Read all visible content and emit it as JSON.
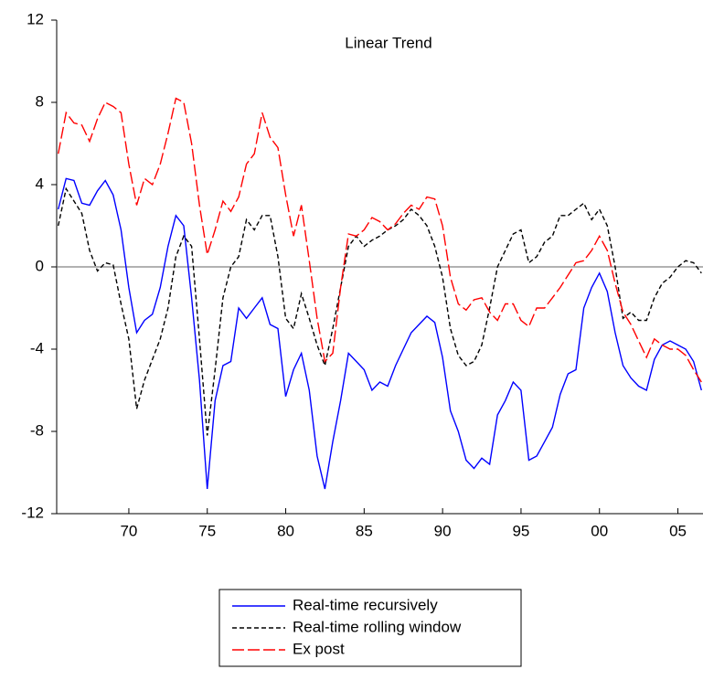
{
  "chart_data": {
    "type": "line",
    "annotation": "Linear Trend",
    "x": [
      1965.5,
      1966,
      1966.5,
      1967,
      1967.5,
      1968,
      1968.5,
      1969,
      1969.5,
      1970,
      1970.5,
      1971,
      1971.5,
      1972,
      1972.5,
      1973,
      1973.5,
      1974,
      1974.5,
      1975,
      1975.5,
      1976,
      1976.5,
      1977,
      1977.5,
      1978,
      1978.5,
      1979,
      1979.5,
      1980,
      1980.5,
      1981,
      1981.5,
      1982,
      1982.5,
      1983,
      1983.5,
      1984,
      1984.5,
      1985,
      1985.5,
      1986,
      1986.5,
      1987,
      1987.5,
      1988,
      1988.5,
      1989,
      1989.5,
      1990,
      1990.5,
      1991,
      1991.5,
      1992,
      1992.5,
      1993,
      1993.5,
      1994,
      1994.5,
      1995,
      1995.5,
      1996,
      1996.5,
      1997,
      1997.5,
      1998,
      1998.5,
      1999,
      1999.5,
      2000,
      2000.5,
      2001,
      2001.5,
      2002,
      2002.5,
      2003,
      2003.5,
      2004,
      2004.5,
      2005,
      2005.5,
      2006,
      2006.5
    ],
    "series": [
      {
        "name": "Real-time recursively",
        "color": "#0000ff",
        "dash": "solid",
        "values": [
          2.8,
          4.3,
          4.2,
          3.1,
          3.0,
          3.7,
          4.2,
          3.5,
          1.8,
          -1.0,
          -3.2,
          -2.6,
          -2.3,
          -1.0,
          1.0,
          2.5,
          2.0,
          -1.5,
          -5.5,
          -10.8,
          -6.5,
          -4.8,
          -4.6,
          -2.0,
          -2.5,
          -2.0,
          -1.5,
          -2.8,
          -3.0,
          -6.3,
          -5.0,
          -4.2,
          -6.0,
          -9.2,
          -10.8,
          -8.5,
          -6.5,
          -4.2,
          -4.6,
          -5.0,
          -6.0,
          -5.6,
          -5.8,
          -4.8,
          -4.0,
          -3.2,
          -2.8,
          -2.4,
          -2.7,
          -4.4,
          -7.0,
          -8.0,
          -9.4,
          -9.8,
          -9.3,
          -9.6,
          -7.2,
          -6.5,
          -5.6,
          -6.0,
          -9.4,
          -9.2,
          -8.5,
          -7.8,
          -6.2,
          -5.2,
          -5.0,
          -2.0,
          -1.0,
          -0.3,
          -1.2,
          -3.2,
          -4.8,
          -5.4,
          -5.8,
          -6.0,
          -4.5,
          -3.8,
          -3.6,
          -3.8,
          -4.0,
          -4.6,
          -6.0
        ]
      },
      {
        "name": "Real-time rolling window",
        "color": "#000000",
        "dash": "short-dash",
        "values": [
          2.0,
          3.8,
          3.2,
          2.6,
          0.8,
          -0.2,
          0.2,
          0.1,
          -1.8,
          -3.5,
          -6.9,
          -5.5,
          -4.5,
          -3.5,
          -2.0,
          0.5,
          1.5,
          1.0,
          -3.5,
          -8.2,
          -5.0,
          -1.5,
          0.0,
          0.5,
          2.3,
          1.8,
          2.5,
          2.5,
          0.5,
          -2.5,
          -3.0,
          -1.3,
          -2.5,
          -3.8,
          -4.8,
          -3.0,
          -1.0,
          1.0,
          1.5,
          1.0,
          1.3,
          1.5,
          1.8,
          2.0,
          2.3,
          2.8,
          2.5,
          2.0,
          1.0,
          -0.5,
          -3.0,
          -4.3,
          -4.8,
          -4.6,
          -3.8,
          -2.0,
          0.0,
          0.8,
          1.6,
          1.8,
          0.2,
          0.5,
          1.2,
          1.5,
          2.5,
          2.5,
          2.8,
          3.1,
          2.3,
          2.8,
          2.0,
          0.0,
          -2.5,
          -2.2,
          -2.6,
          -2.6,
          -1.5,
          -0.8,
          -0.5,
          0.0,
          0.3,
          0.2,
          -0.3
        ]
      },
      {
        "name": "Ex post",
        "color": "#ff0000",
        "dash": "long-dash",
        "values": [
          5.5,
          7.5,
          7.0,
          6.9,
          6.1,
          7.2,
          8.0,
          7.8,
          7.5,
          5.0,
          3.0,
          4.3,
          4.0,
          5.0,
          6.5,
          8.2,
          8.0,
          6.0,
          3.0,
          0.6,
          1.8,
          3.2,
          2.7,
          3.4,
          5.0,
          5.5,
          7.5,
          6.3,
          5.8,
          3.5,
          1.5,
          3.0,
          0.3,
          -2.5,
          -4.6,
          -4.2,
          -1.0,
          1.6,
          1.5,
          1.8,
          2.4,
          2.2,
          1.8,
          2.1,
          2.6,
          3.0,
          2.8,
          3.4,
          3.3,
          2.0,
          -0.5,
          -1.8,
          -2.1,
          -1.6,
          -1.5,
          -2.2,
          -2.6,
          -1.8,
          -1.8,
          -2.6,
          -2.9,
          -2.0,
          -2.0,
          -1.5,
          -1.0,
          -0.4,
          0.2,
          0.3,
          0.8,
          1.5,
          0.8,
          -0.8,
          -2.2,
          -2.8,
          -3.6,
          -4.4,
          -3.5,
          -3.8,
          -4.0,
          -4.0,
          -4.3,
          -5.0,
          -5.6
        ]
      }
    ],
    "xlim": [
      1965.4,
      2006.6
    ],
    "xticks": [
      {
        "value": 1970,
        "label": "70"
      },
      {
        "value": 1975,
        "label": "75"
      },
      {
        "value": 1980,
        "label": "80"
      },
      {
        "value": 1985,
        "label": "85"
      },
      {
        "value": 1990,
        "label": "90"
      },
      {
        "value": 1995,
        "label": "95"
      },
      {
        "value": 2000,
        "label": "00"
      },
      {
        "value": 2005,
        "label": "05"
      }
    ],
    "ylim": [
      -12,
      12
    ],
    "yticks": [
      -12,
      -8,
      -4,
      0,
      4,
      8,
      12
    ],
    "zero_line": true,
    "legend": "bottom"
  }
}
